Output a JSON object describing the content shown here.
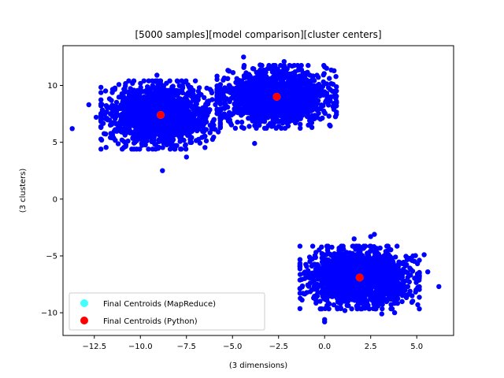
{
  "chart_data": {
    "type": "scatter",
    "title": "[5000 samples][model comparison][cluster centers]",
    "xlabel": "(3 dimensions)",
    "ylabel": "(3 clusters)",
    "xlim": [
      -14.2,
      7.0
    ],
    "ylim": [
      -12.0,
      13.5
    ],
    "xticks": [
      -12.5,
      -10.0,
      -7.5,
      -5.0,
      -2.5,
      0.0,
      2.5,
      5.0
    ],
    "xtick_labels": [
      "−12.5",
      "−10.0",
      "−7.5",
      "−5.0",
      "−2.5",
      "0.0",
      "2.5",
      "5.0"
    ],
    "yticks": [
      -10,
      -5,
      0,
      5,
      10
    ],
    "ytick_labels": [
      "−10",
      "−5",
      "0",
      "5",
      "10"
    ],
    "grid": false,
    "legend_position": "lower-left",
    "sample_count": 5000,
    "series": [
      {
        "name": "",
        "kind": "samples",
        "color": "#0000ff",
        "clusters": [
          {
            "center": [
              -8.9,
              7.4
            ],
            "spread": [
              1.35,
              1.25
            ]
          },
          {
            "center": [
              -2.6,
              9.0
            ],
            "spread": [
              1.35,
              1.15
            ]
          },
          {
            "center": [
              1.9,
              -6.9
            ],
            "spread": [
              1.35,
              1.15
            ]
          }
        ],
        "outliers": [
          [
            -13.7,
            6.2
          ],
          [
            -12.8,
            8.3
          ],
          [
            -12.4,
            7.2
          ],
          [
            -12.1,
            5.2
          ],
          [
            -11.6,
            6.6
          ],
          [
            -8.8,
            2.5
          ],
          [
            -6.0,
            7.0
          ],
          [
            -4.6,
            8.5
          ],
          [
            -3.8,
            4.9
          ],
          [
            -1.0,
            7.6
          ],
          [
            -0.4,
            8.4
          ],
          [
            -5.0,
            9.4
          ],
          [
            -3.5,
            11.8
          ],
          [
            -1.6,
            11.2
          ],
          [
            -0.8,
            10.9
          ],
          [
            0.3,
            8.7
          ],
          [
            0.5,
            7.9
          ],
          [
            -4.4,
            12.5
          ],
          [
            -2.2,
            12.1
          ],
          [
            -7.5,
            3.7
          ],
          [
            -9.1,
            10.9
          ],
          [
            -6.8,
            9.8
          ],
          [
            -10.5,
            9.6
          ],
          [
            -0.8,
            -5.5
          ],
          [
            -0.9,
            -6.3
          ],
          [
            -0.4,
            -7.5
          ],
          [
            0.0,
            -10.6
          ],
          [
            0.0,
            -10.8
          ],
          [
            1.6,
            -3.5
          ],
          [
            2.5,
            -3.3
          ],
          [
            2.7,
            -3.1
          ],
          [
            4.8,
            -5.0
          ],
          [
            5.4,
            -4.9
          ],
          [
            5.6,
            -6.4
          ],
          [
            6.2,
            -7.7
          ],
          [
            4.6,
            -8.3
          ],
          [
            3.8,
            -10.0
          ],
          [
            1.1,
            -9.8
          ],
          [
            3.1,
            -10.1
          ],
          [
            -0.6,
            -8.7
          ]
        ]
      },
      {
        "name": "Final Centroids (MapReduce)",
        "kind": "centroids",
        "color": "#44ffff",
        "points": [
          [
            -8.9,
            7.4
          ],
          [
            -2.6,
            9.0
          ],
          [
            1.9,
            -6.9
          ]
        ]
      },
      {
        "name": "Final Centroids (Python)",
        "kind": "centroids",
        "color": "#ff0000",
        "points": [
          [
            -8.9,
            7.4
          ],
          [
            -2.6,
            9.0
          ],
          [
            1.9,
            -6.9
          ]
        ]
      }
    ]
  }
}
